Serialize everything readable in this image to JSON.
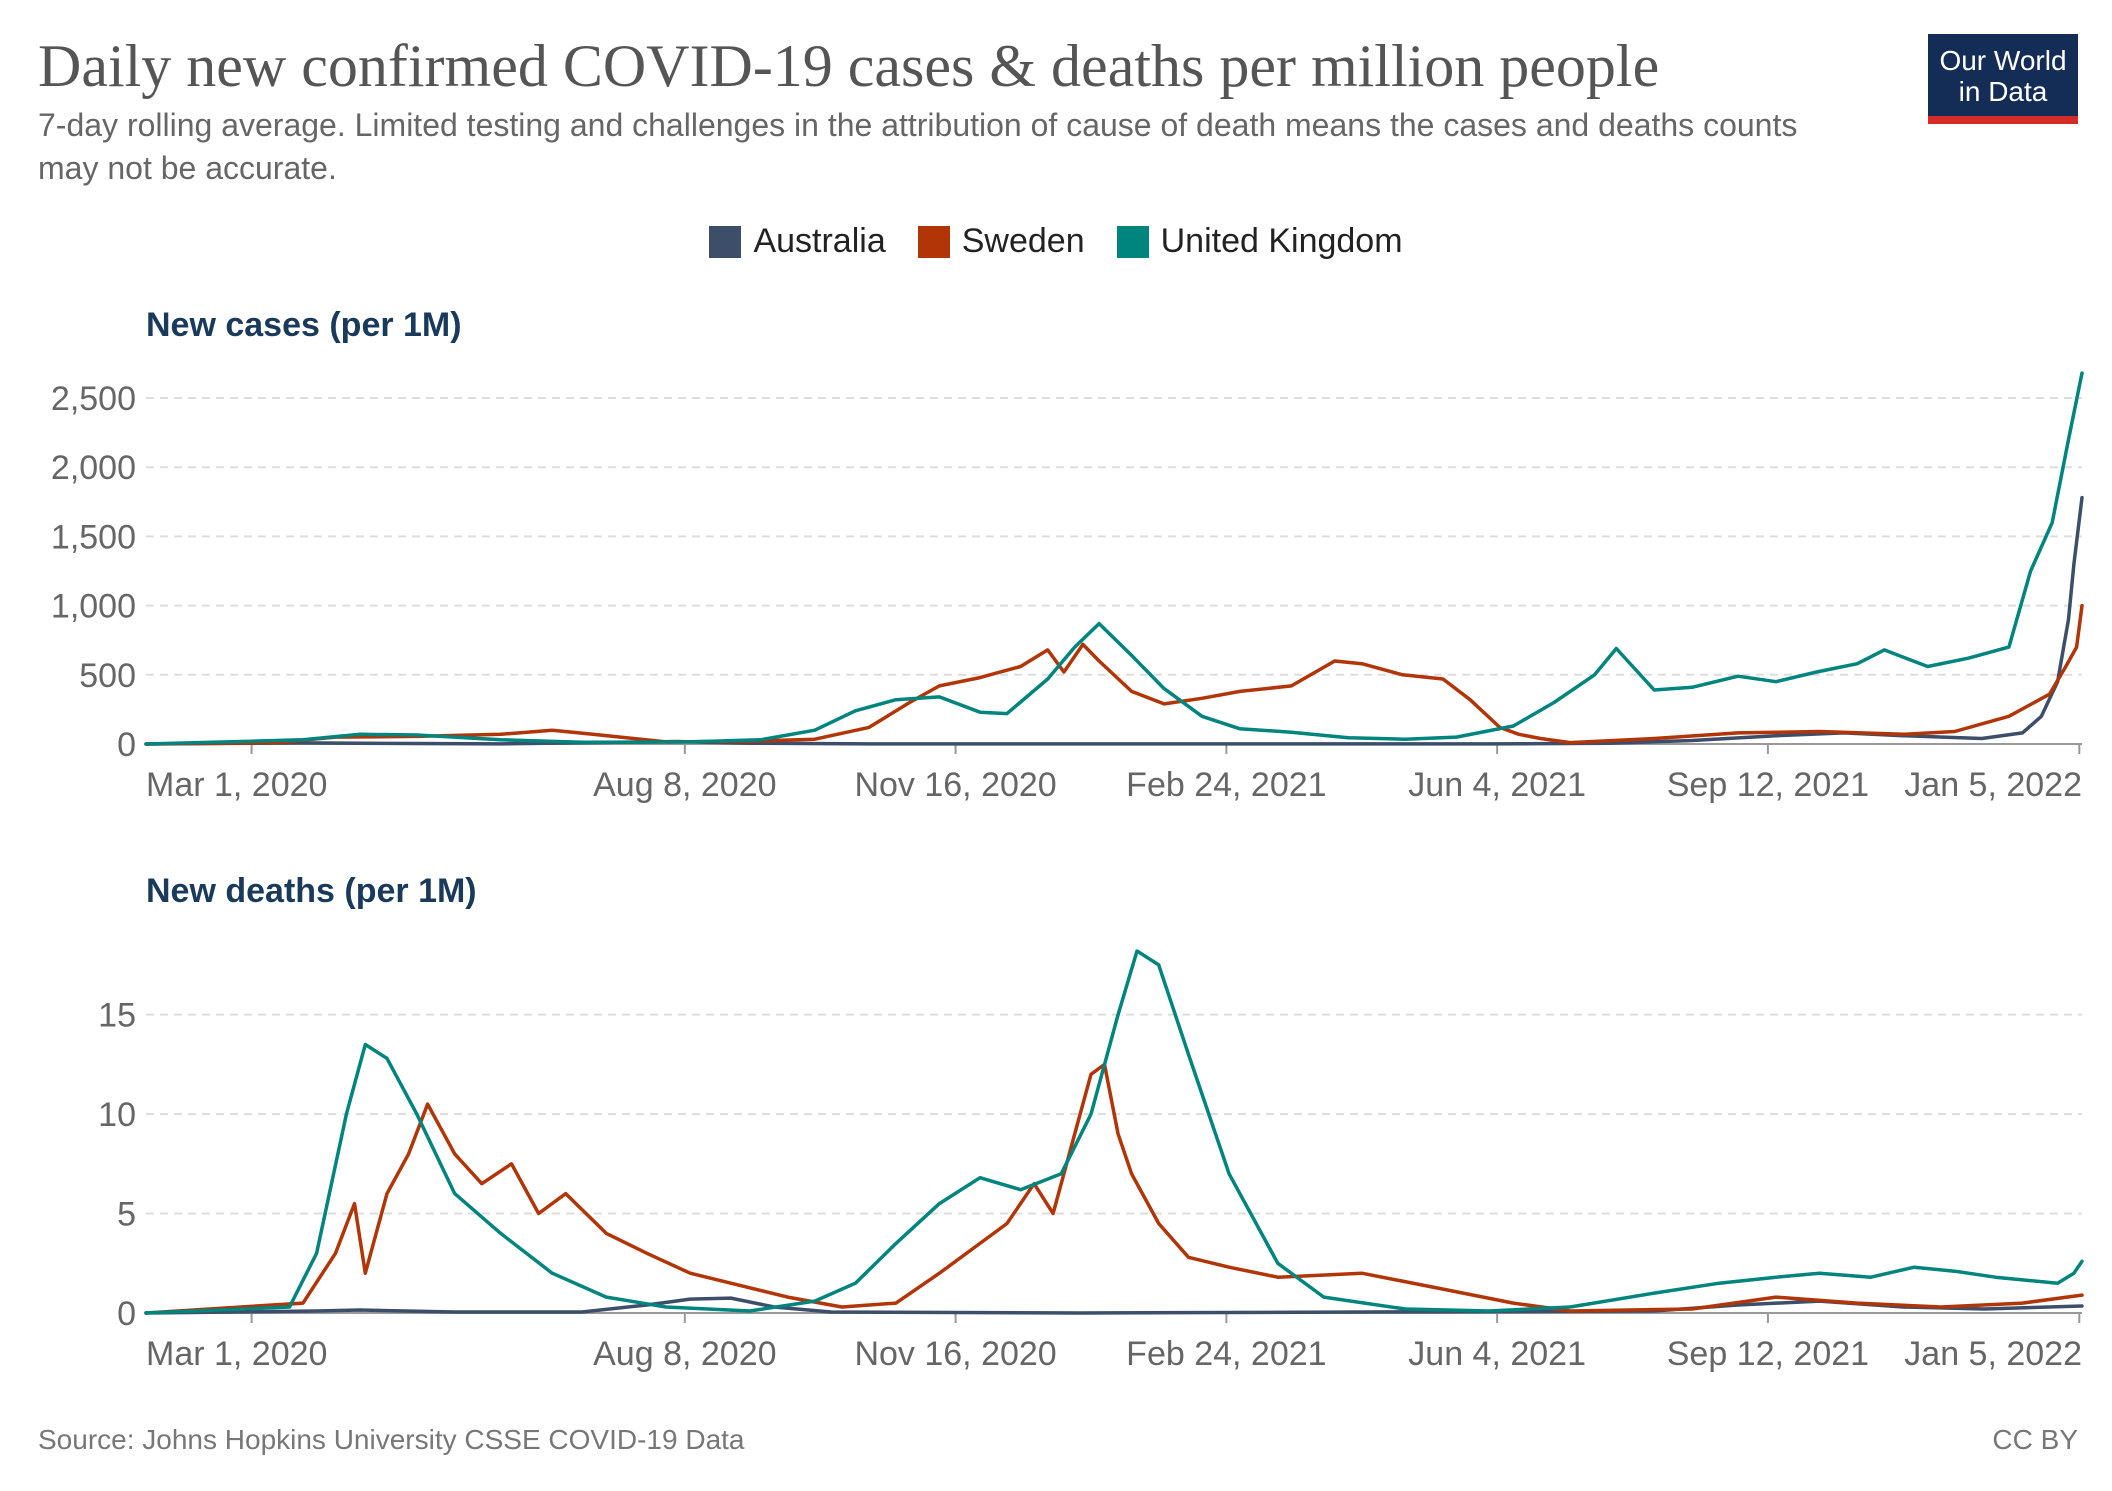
{
  "header": {
    "title": "Daily new confirmed COVID-19 cases & deaths per million people",
    "subtitle": "7-day rolling average. Limited testing and challenges in the attribution of cause of death means the cases and deaths counts may not be accurate."
  },
  "logo": {
    "line1": "Our World",
    "line2": "in Data"
  },
  "legend": [
    {
      "name": "Australia",
      "color": "#3c4e6a"
    },
    {
      "name": "Sweden",
      "color": "#b13507"
    },
    {
      "name": "United Kingdom",
      "color": "#00847e"
    }
  ],
  "footer": {
    "source": "Source: Johns Hopkins University CSSE COVID-19 Data",
    "license": "CC BY"
  },
  "chart_data": [
    {
      "type": "line",
      "title": "New cases (per 1M)",
      "xlabel": "",
      "ylabel": "",
      "x_tick_labels": [
        "Mar 1, 2020",
        "Aug 8, 2020",
        "Nov 16, 2020",
        "Feb 24, 2021",
        "Jun 4, 2021",
        "Sep 12, 2021",
        "Jan 5, 2022"
      ],
      "x_range": [
        "2020-01-22",
        "2022-01-06"
      ],
      "ylim": [
        0,
        2500
      ],
      "y_ticks": [
        0,
        500,
        1000,
        1500,
        2000,
        2500
      ],
      "y_tick_labels": [
        "0",
        "500",
        "1,000",
        "1,500",
        "2,000",
        "2,500"
      ],
      "grid": "horizontal dashed",
      "series": [
        {
          "name": "Australia",
          "color": "#3c4e6a",
          "points": [
            [
              "2020-01-22",
              0
            ],
            [
              "2020-03-20",
              8
            ],
            [
              "2020-04-10",
              5
            ],
            [
              "2020-06-01",
              1
            ],
            [
              "2020-07-15",
              12
            ],
            [
              "2020-08-05",
              18
            ],
            [
              "2020-09-01",
              6
            ],
            [
              "2020-10-15",
              1
            ],
            [
              "2021-01-01",
              1
            ],
            [
              "2021-06-01",
              1
            ],
            [
              "2021-07-15",
              5
            ],
            [
              "2021-08-15",
              25
            ],
            [
              "2021-09-15",
              60
            ],
            [
              "2021-10-10",
              80
            ],
            [
              "2021-11-01",
              60
            ],
            [
              "2021-11-30",
              40
            ],
            [
              "2021-12-15",
              80
            ],
            [
              "2021-12-22",
              200
            ],
            [
              "2021-12-28",
              450
            ],
            [
              "2022-01-01",
              900
            ],
            [
              "2022-01-03",
              1300
            ],
            [
              "2022-01-06",
              1780
            ]
          ]
        },
        {
          "name": "Sweden",
          "color": "#b13507",
          "points": [
            [
              "2020-01-22",
              0
            ],
            [
              "2020-03-10",
              10
            ],
            [
              "2020-04-01",
              50
            ],
            [
              "2020-05-01",
              55
            ],
            [
              "2020-06-01",
              70
            ],
            [
              "2020-06-20",
              100
            ],
            [
              "2020-07-05",
              70
            ],
            [
              "2020-08-01",
              15
            ],
            [
              "2020-09-01",
              20
            ],
            [
              "2020-09-25",
              35
            ],
            [
              "2020-10-15",
              120
            ],
            [
              "2020-10-30",
              300
            ],
            [
              "2020-11-10",
              420
            ],
            [
              "2020-11-25",
              480
            ],
            [
              "2020-12-10",
              560
            ],
            [
              "2020-12-20",
              680
            ],
            [
              "2020-12-26",
              520
            ],
            [
              "2021-01-02",
              720
            ],
            [
              "2021-01-08",
              600
            ],
            [
              "2021-01-20",
              380
            ],
            [
              "2021-02-01",
              290
            ],
            [
              "2021-02-15",
              330
            ],
            [
              "2021-03-01",
              380
            ],
            [
              "2021-03-20",
              420
            ],
            [
              "2021-04-05",
              600
            ],
            [
              "2021-04-15",
              580
            ],
            [
              "2021-04-30",
              500
            ],
            [
              "2021-05-15",
              470
            ],
            [
              "2021-05-25",
              320
            ],
            [
              "2021-06-05",
              120
            ],
            [
              "2021-06-12",
              70
            ],
            [
              "2021-06-20",
              40
            ],
            [
              "2021-07-01",
              10
            ],
            [
              "2021-08-01",
              40
            ],
            [
              "2021-09-01",
              80
            ],
            [
              "2021-10-01",
              90
            ],
            [
              "2021-11-01",
              70
            ],
            [
              "2021-11-20",
              90
            ],
            [
              "2021-12-10",
              200
            ],
            [
              "2021-12-25",
              360
            ],
            [
              "2021-12-31",
              560
            ],
            [
              "2022-01-04",
              700
            ],
            [
              "2022-01-06",
              1000
            ]
          ]
        },
        {
          "name": "United Kingdom",
          "color": "#00847e",
          "points": [
            [
              "2020-01-22",
              0
            ],
            [
              "2020-03-20",
              30
            ],
            [
              "2020-04-10",
              70
            ],
            [
              "2020-05-01",
              65
            ],
            [
              "2020-06-01",
              30
            ],
            [
              "2020-07-01",
              12
            ],
            [
              "2020-08-10",
              15
            ],
            [
              "2020-09-05",
              30
            ],
            [
              "2020-09-25",
              100
            ],
            [
              "2020-10-10",
              240
            ],
            [
              "2020-10-25",
              320
            ],
            [
              "2020-11-10",
              340
            ],
            [
              "2020-11-25",
              230
            ],
            [
              "2020-12-05",
              220
            ],
            [
              "2020-12-20",
              470
            ],
            [
              "2020-12-30",
              700
            ],
            [
              "2021-01-08",
              870
            ],
            [
              "2021-01-20",
              640
            ],
            [
              "2021-02-01",
              400
            ],
            [
              "2021-02-15",
              200
            ],
            [
              "2021-03-01",
              110
            ],
            [
              "2021-03-20",
              85
            ],
            [
              "2021-04-10",
              45
            ],
            [
              "2021-05-01",
              35
            ],
            [
              "2021-05-20",
              50
            ],
            [
              "2021-06-10",
              130
            ],
            [
              "2021-06-25",
              300
            ],
            [
              "2021-07-10",
              500
            ],
            [
              "2021-07-18",
              690
            ],
            [
              "2021-08-01",
              390
            ],
            [
              "2021-08-15",
              410
            ],
            [
              "2021-09-01",
              490
            ],
            [
              "2021-09-15",
              450
            ],
            [
              "2021-09-30",
              520
            ],
            [
              "2021-10-15",
              580
            ],
            [
              "2021-10-25",
              680
            ],
            [
              "2021-11-10",
              560
            ],
            [
              "2021-11-25",
              620
            ],
            [
              "2021-12-10",
              700
            ],
            [
              "2021-12-18",
              1250
            ],
            [
              "2021-12-26",
              1600
            ],
            [
              "2022-01-01",
              2200
            ],
            [
              "2022-01-06",
              2680
            ]
          ]
        }
      ]
    },
    {
      "type": "line",
      "title": "New deaths (per 1M)",
      "xlabel": "",
      "ylabel": "",
      "x_tick_labels": [
        "Mar 1, 2020",
        "Aug 8, 2020",
        "Nov 16, 2020",
        "Feb 24, 2021",
        "Jun 4, 2021",
        "Sep 12, 2021",
        "Jan 5, 2022"
      ],
      "x_range": [
        "2020-01-22",
        "2022-01-06"
      ],
      "ylim": [
        0,
        18.5
      ],
      "y_ticks": [
        0,
        5,
        10,
        15
      ],
      "y_tick_labels": [
        "0",
        "5",
        "10",
        "15"
      ],
      "grid": "horizontal dashed",
      "series": [
        {
          "name": "Australia",
          "color": "#3c4e6a",
          "points": [
            [
              "2020-01-22",
              0
            ],
            [
              "2020-03-25",
              0.1
            ],
            [
              "2020-04-10",
              0.15
            ],
            [
              "2020-05-15",
              0.05
            ],
            [
              "2020-07-01",
              0.05
            ],
            [
              "2020-07-25",
              0.4
            ],
            [
              "2020-08-10",
              0.7
            ],
            [
              "2020-08-25",
              0.75
            ],
            [
              "2020-09-10",
              0.3
            ],
            [
              "2020-10-01",
              0.05
            ],
            [
              "2021-01-01",
              0
            ],
            [
              "2021-08-01",
              0.1
            ],
            [
              "2021-09-01",
              0.4
            ],
            [
              "2021-10-01",
              0.6
            ],
            [
              "2021-11-01",
              0.3
            ],
            [
              "2021-12-01",
              0.2
            ],
            [
              "2022-01-06",
              0.35
            ]
          ]
        },
        {
          "name": "Sweden",
          "color": "#b13507",
          "points": [
            [
              "2020-01-22",
              0
            ],
            [
              "2020-03-20",
              0.5
            ],
            [
              "2020-04-01",
              3
            ],
            [
              "2020-04-08",
              5.5
            ],
            [
              "2020-04-12",
              2
            ],
            [
              "2020-04-20",
              6
            ],
            [
              "2020-04-28",
              8
            ],
            [
              "2020-05-05",
              10.5
            ],
            [
              "2020-05-15",
              8
            ],
            [
              "2020-05-25",
              6.5
            ],
            [
              "2020-06-05",
              7.5
            ],
            [
              "2020-06-15",
              5
            ],
            [
              "2020-06-25",
              6
            ],
            [
              "2020-07-10",
              4
            ],
            [
              "2020-07-25",
              3
            ],
            [
              "2020-08-10",
              2
            ],
            [
              "2020-08-25",
              1.5
            ],
            [
              "2020-09-15",
              0.8
            ],
            [
              "2020-10-05",
              0.3
            ],
            [
              "2020-10-25",
              0.5
            ],
            [
              "2020-11-10",
              2
            ],
            [
              "2020-11-25",
              3.5
            ],
            [
              "2020-12-05",
              4.5
            ],
            [
              "2020-12-15",
              6.5
            ],
            [
              "2020-12-22",
              5
            ],
            [
              "2020-12-30",
              9
            ],
            [
              "2021-01-05",
              12
            ],
            [
              "2021-01-10",
              12.5
            ],
            [
              "2021-01-15",
              9
            ],
            [
              "2021-01-20",
              7
            ],
            [
              "2021-01-30",
              4.5
            ],
            [
              "2021-02-10",
              2.8
            ],
            [
              "2021-02-25",
              2.3
            ],
            [
              "2021-03-15",
              1.8
            ],
            [
              "2021-04-15",
              2
            ],
            [
              "2021-05-15",
              1.2
            ],
            [
              "2021-06-10",
              0.5
            ],
            [
              "2021-07-01",
              0.1
            ],
            [
              "2021-08-15",
              0.2
            ],
            [
              "2021-09-15",
              0.8
            ],
            [
              "2021-10-15",
              0.5
            ],
            [
              "2021-11-15",
              0.3
            ],
            [
              "2021-12-15",
              0.5
            ],
            [
              "2022-01-06",
              0.9
            ]
          ]
        },
        {
          "name": "United Kingdom",
          "color": "#00847e",
          "points": [
            [
              "2020-01-22",
              0
            ],
            [
              "2020-03-15",
              0.3
            ],
            [
              "2020-03-25",
              3
            ],
            [
              "2020-04-05",
              10
            ],
            [
              "2020-04-12",
              13.5
            ],
            [
              "2020-04-20",
              12.8
            ],
            [
              "2020-05-01",
              10
            ],
            [
              "2020-05-15",
              6
            ],
            [
              "2020-06-01",
              4
            ],
            [
              "2020-06-20",
              2
            ],
            [
              "2020-07-10",
              0.8
            ],
            [
              "2020-08-01",
              0.3
            ],
            [
              "2020-09-01",
              0.1
            ],
            [
              "2020-09-25",
              0.6
            ],
            [
              "2020-10-10",
              1.5
            ],
            [
              "2020-10-25",
              3.5
            ],
            [
              "2020-11-10",
              5.5
            ],
            [
              "2020-11-25",
              6.8
            ],
            [
              "2020-12-10",
              6.2
            ],
            [
              "2020-12-25",
              7
            ],
            [
              "2021-01-05",
              10
            ],
            [
              "2021-01-15",
              15
            ],
            [
              "2021-01-22",
              18.2
            ],
            [
              "2021-01-30",
              17.5
            ],
            [
              "2021-02-10",
              13
            ],
            [
              "2021-02-25",
              7
            ],
            [
              "2021-03-15",
              2.5
            ],
            [
              "2021-04-01",
              0.8
            ],
            [
              "2021-05-01",
              0.2
            ],
            [
              "2021-06-01",
              0.1
            ],
            [
              "2021-07-01",
              0.3
            ],
            [
              "2021-08-01",
              1
            ],
            [
              "2021-08-25",
              1.5
            ],
            [
              "2021-09-15",
              1.8
            ],
            [
              "2021-10-01",
              2
            ],
            [
              "2021-10-20",
              1.8
            ],
            [
              "2021-11-05",
              2.3
            ],
            [
              "2021-11-20",
              2.1
            ],
            [
              "2021-12-05",
              1.8
            ],
            [
              "2021-12-28",
              1.5
            ],
            [
              "2022-01-03",
              2
            ],
            [
              "2022-01-06",
              2.6
            ]
          ]
        }
      ]
    }
  ]
}
